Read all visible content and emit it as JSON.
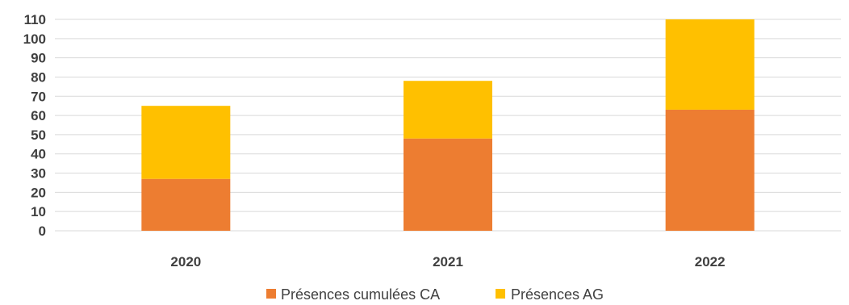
{
  "chart_data": {
    "type": "bar",
    "stacked": true,
    "categories": [
      "2020",
      "2021",
      "2022"
    ],
    "series": [
      {
        "name": "Présences cumulées CA",
        "color": "#ED7D31",
        "values": [
          27,
          48,
          63
        ]
      },
      {
        "name": "Présences AG",
        "color": "#FFC000",
        "values": [
          38,
          30,
          47
        ]
      }
    ],
    "ylim": [
      0,
      110
    ],
    "yticks": [
      0,
      10,
      20,
      30,
      40,
      50,
      60,
      70,
      80,
      90,
      100,
      110
    ],
    "grid": true,
    "legend_position": "bottom"
  }
}
